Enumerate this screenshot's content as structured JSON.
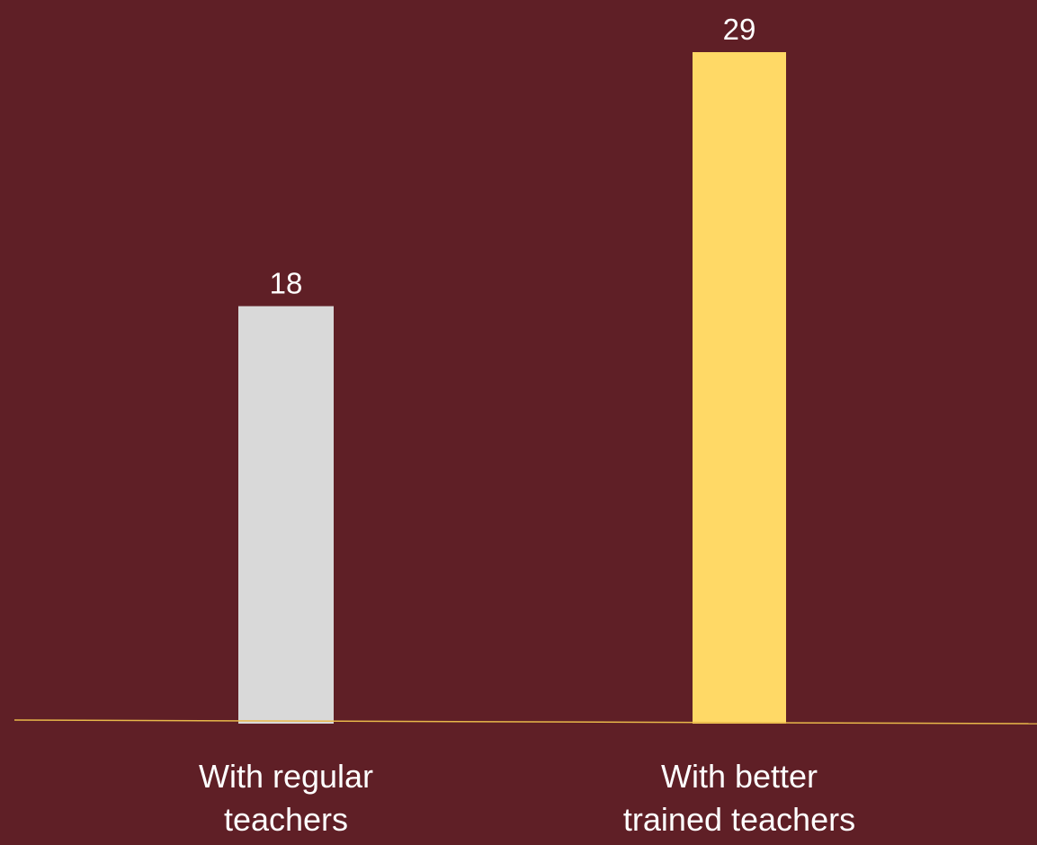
{
  "colors": {
    "background": "#5f1f26",
    "axis": "#e8b84a",
    "label": "#ffffff"
  },
  "chart_data": {
    "type": "bar",
    "categories": [
      [
        "With regular",
        "teachers"
      ],
      [
        "With better",
        "trained teachers"
      ]
    ],
    "values": [
      18,
      29
    ],
    "bar_colors": [
      "#d9d9d9",
      "#ffd966"
    ],
    "data_labels": [
      "18",
      "29"
    ],
    "ylim": [
      0,
      29
    ],
    "grid": false,
    "legend": "none",
    "title": "",
    "xlabel": "",
    "ylabel": ""
  }
}
